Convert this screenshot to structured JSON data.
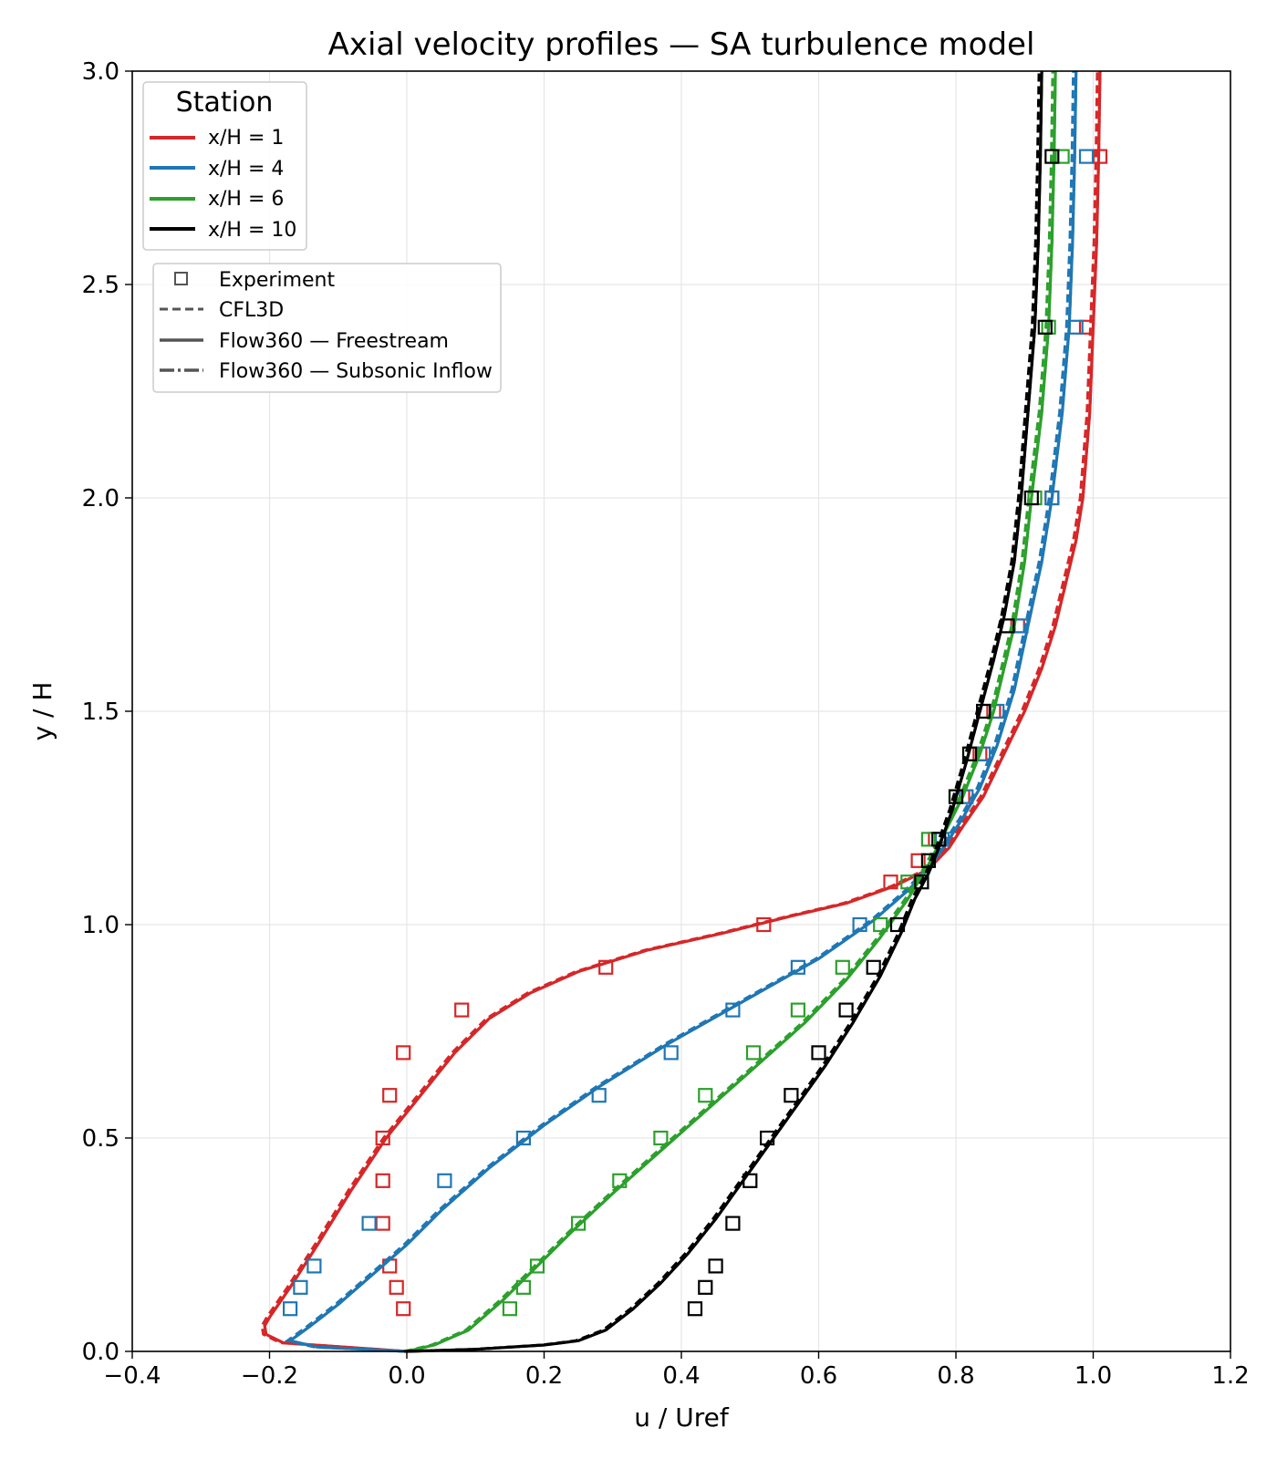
{
  "chart_data": {
    "type": "line",
    "title": "Axial velocity profiles — SA turbulence model",
    "xlabel": "u / Uref",
    "ylabel": "y / H",
    "xlim": [
      -0.4,
      1.2
    ],
    "ylim": [
      0.0,
      3.0
    ],
    "xticks": [
      -0.4,
      -0.2,
      0.0,
      0.2,
      0.4,
      0.6,
      0.8,
      1.0,
      1.2
    ],
    "xtick_labels": [
      "−0.4",
      "−0.2",
      "0.0",
      "0.2",
      "0.4",
      "0.6",
      "0.8",
      "1.0",
      "1.2"
    ],
    "yticks": [
      0.0,
      0.5,
      1.0,
      1.5,
      2.0,
      2.5,
      3.0
    ],
    "ytick_labels": [
      "0.0",
      "0.5",
      "1.0",
      "1.5",
      "2.0",
      "2.5",
      "3.0"
    ],
    "grid": true,
    "legend_station": {
      "title": "Station",
      "placement": "top-left",
      "entries": [
        "x/H = 1",
        "x/H = 4",
        "x/H = 6",
        "x/H = 10"
      ]
    },
    "legend_method": {
      "placement": "upper-left",
      "entries": [
        "Experiment",
        "CFL3D",
        "Flow360 — Freestream",
        "Flow360 — Subsonic Inflow"
      ]
    },
    "series": [
      {
        "name": "x/H = 1",
        "color": "#d62728",
        "profile": [
          [
            0.0,
            0.0
          ],
          [
            -0.18,
            0.02
          ],
          [
            -0.205,
            0.04
          ],
          [
            -0.207,
            0.06
          ],
          [
            -0.2,
            0.08
          ],
          [
            -0.17,
            0.15
          ],
          [
            -0.13,
            0.25
          ],
          [
            -0.08,
            0.38
          ],
          [
            -0.03,
            0.5
          ],
          [
            0.02,
            0.6
          ],
          [
            0.07,
            0.7
          ],
          [
            0.12,
            0.78
          ],
          [
            0.18,
            0.84
          ],
          [
            0.25,
            0.89
          ],
          [
            0.35,
            0.94
          ],
          [
            0.46,
            0.98
          ],
          [
            0.56,
            1.02
          ],
          [
            0.64,
            1.05
          ],
          [
            0.71,
            1.09
          ],
          [
            0.76,
            1.13
          ],
          [
            0.79,
            1.18
          ],
          [
            0.81,
            1.23
          ],
          [
            0.84,
            1.3
          ],
          [
            0.87,
            1.4
          ],
          [
            0.9,
            1.5
          ],
          [
            0.925,
            1.6
          ],
          [
            0.945,
            1.7
          ],
          [
            0.96,
            1.8
          ],
          [
            0.975,
            1.9
          ],
          [
            0.985,
            2.0
          ],
          [
            0.995,
            2.2
          ],
          [
            1.0,
            2.4
          ],
          [
            1.005,
            2.6
          ],
          [
            1.008,
            2.8
          ],
          [
            1.01,
            3.0
          ]
        ],
        "experiment": [
          [
            -0.005,
            0.1
          ],
          [
            -0.015,
            0.15
          ],
          [
            -0.025,
            0.2
          ],
          [
            -0.035,
            0.3
          ],
          [
            -0.035,
            0.4
          ],
          [
            -0.035,
            0.5
          ],
          [
            -0.025,
            0.6
          ],
          [
            -0.005,
            0.7
          ],
          [
            0.08,
            0.8
          ],
          [
            0.29,
            0.9
          ],
          [
            0.52,
            1.0
          ],
          [
            0.705,
            1.1
          ],
          [
            0.745,
            1.15
          ],
          [
            0.77,
            1.2
          ],
          [
            0.81,
            1.3
          ],
          [
            0.835,
            1.4
          ],
          [
            0.855,
            1.5
          ],
          [
            0.89,
            1.7
          ],
          [
            0.94,
            2.0
          ],
          [
            0.99,
            2.4
          ],
          [
            1.01,
            2.8
          ]
        ]
      },
      {
        "name": "x/H = 4",
        "color": "#1f77b4",
        "profile": [
          [
            0.0,
            0.0
          ],
          [
            -0.06,
            0.005
          ],
          [
            -0.13,
            0.01
          ],
          [
            -0.17,
            0.025
          ],
          [
            -0.14,
            0.06
          ],
          [
            -0.1,
            0.11
          ],
          [
            -0.05,
            0.18
          ],
          [
            0.0,
            0.25
          ],
          [
            0.05,
            0.33
          ],
          [
            0.12,
            0.43
          ],
          [
            0.2,
            0.53
          ],
          [
            0.28,
            0.62
          ],
          [
            0.38,
            0.72
          ],
          [
            0.49,
            0.82
          ],
          [
            0.6,
            0.92
          ],
          [
            0.68,
            1.01
          ],
          [
            0.73,
            1.08
          ],
          [
            0.76,
            1.13
          ],
          [
            0.79,
            1.2
          ],
          [
            0.81,
            1.25
          ],
          [
            0.835,
            1.32
          ],
          [
            0.86,
            1.42
          ],
          [
            0.885,
            1.55
          ],
          [
            0.905,
            1.7
          ],
          [
            0.925,
            1.85
          ],
          [
            0.94,
            2.0
          ],
          [
            0.955,
            2.2
          ],
          [
            0.965,
            2.4
          ],
          [
            0.97,
            2.6
          ],
          [
            0.973,
            2.8
          ],
          [
            0.975,
            3.0
          ]
        ],
        "experiment": [
          [
            -0.17,
            0.1
          ],
          [
            -0.155,
            0.15
          ],
          [
            -0.135,
            0.2
          ],
          [
            -0.055,
            0.3
          ],
          [
            0.055,
            0.4
          ],
          [
            0.17,
            0.5
          ],
          [
            0.28,
            0.6
          ],
          [
            0.385,
            0.7
          ],
          [
            0.475,
            0.8
          ],
          [
            0.57,
            0.9
          ],
          [
            0.66,
            1.0
          ],
          [
            0.78,
            1.2
          ],
          [
            0.815,
            1.3
          ],
          [
            0.84,
            1.4
          ],
          [
            0.86,
            1.5
          ],
          [
            0.895,
            1.7
          ],
          [
            0.94,
            2.0
          ],
          [
            0.975,
            2.4
          ],
          [
            0.99,
            2.8
          ]
        ]
      },
      {
        "name": "x/H = 6",
        "color": "#2ca02c",
        "profile": [
          [
            0.0,
            0.0
          ],
          [
            0.04,
            0.015
          ],
          [
            0.09,
            0.05
          ],
          [
            0.14,
            0.12
          ],
          [
            0.19,
            0.2
          ],
          [
            0.24,
            0.28
          ],
          [
            0.3,
            0.37
          ],
          [
            0.37,
            0.47
          ],
          [
            0.44,
            0.57
          ],
          [
            0.51,
            0.67
          ],
          [
            0.58,
            0.77
          ],
          [
            0.64,
            0.87
          ],
          [
            0.69,
            0.97
          ],
          [
            0.73,
            1.06
          ],
          [
            0.76,
            1.14
          ],
          [
            0.785,
            1.22
          ],
          [
            0.81,
            1.3
          ],
          [
            0.835,
            1.4
          ],
          [
            0.855,
            1.5
          ],
          [
            0.87,
            1.6
          ],
          [
            0.885,
            1.7
          ],
          [
            0.9,
            1.85
          ],
          [
            0.91,
            2.0
          ],
          [
            0.925,
            2.2
          ],
          [
            0.935,
            2.4
          ],
          [
            0.94,
            2.6
          ],
          [
            0.943,
            2.8
          ],
          [
            0.945,
            3.0
          ]
        ],
        "experiment": [
          [
            0.15,
            0.1
          ],
          [
            0.17,
            0.15
          ],
          [
            0.19,
            0.2
          ],
          [
            0.25,
            0.3
          ],
          [
            0.31,
            0.4
          ],
          [
            0.37,
            0.5
          ],
          [
            0.435,
            0.6
          ],
          [
            0.505,
            0.7
          ],
          [
            0.57,
            0.8
          ],
          [
            0.635,
            0.9
          ],
          [
            0.69,
            1.0
          ],
          [
            0.73,
            1.1
          ],
          [
            0.76,
            1.2
          ],
          [
            0.8,
            1.3
          ],
          [
            0.82,
            1.4
          ],
          [
            0.84,
            1.5
          ],
          [
            0.875,
            1.7
          ],
          [
            0.915,
            2.0
          ],
          [
            0.935,
            2.4
          ],
          [
            0.955,
            2.8
          ]
        ]
      },
      {
        "name": "x/H = 10",
        "color": "#000000",
        "profile": [
          [
            0.0,
            0.0
          ],
          [
            0.1,
            0.005
          ],
          [
            0.2,
            0.015
          ],
          [
            0.25,
            0.025
          ],
          [
            0.29,
            0.05
          ],
          [
            0.33,
            0.1
          ],
          [
            0.37,
            0.16
          ],
          [
            0.41,
            0.23
          ],
          [
            0.45,
            0.31
          ],
          [
            0.49,
            0.4
          ],
          [
            0.53,
            0.49
          ],
          [
            0.57,
            0.58
          ],
          [
            0.61,
            0.67
          ],
          [
            0.65,
            0.77
          ],
          [
            0.69,
            0.88
          ],
          [
            0.72,
            0.98
          ],
          [
            0.74,
            1.06
          ],
          [
            0.76,
            1.12
          ],
          [
            0.775,
            1.18
          ],
          [
            0.795,
            1.27
          ],
          [
            0.815,
            1.38
          ],
          [
            0.835,
            1.5
          ],
          [
            0.855,
            1.62
          ],
          [
            0.87,
            1.72
          ],
          [
            0.885,
            1.85
          ],
          [
            0.895,
            2.0
          ],
          [
            0.905,
            2.2
          ],
          [
            0.915,
            2.4
          ],
          [
            0.92,
            2.6
          ],
          [
            0.923,
            2.8
          ],
          [
            0.925,
            3.0
          ]
        ],
        "experiment": [
          [
            0.42,
            0.1
          ],
          [
            0.435,
            0.15
          ],
          [
            0.45,
            0.2
          ],
          [
            0.475,
            0.3
          ],
          [
            0.5,
            0.4
          ],
          [
            0.525,
            0.5
          ],
          [
            0.56,
            0.6
          ],
          [
            0.6,
            0.7
          ],
          [
            0.64,
            0.8
          ],
          [
            0.68,
            0.9
          ],
          [
            0.715,
            1.0
          ],
          [
            0.75,
            1.1
          ],
          [
            0.76,
            1.15
          ],
          [
            0.775,
            1.2
          ],
          [
            0.8,
            1.3
          ],
          [
            0.82,
            1.4
          ],
          [
            0.84,
            1.5
          ],
          [
            0.875,
            1.7
          ],
          [
            0.91,
            2.0
          ],
          [
            0.93,
            2.4
          ],
          [
            0.94,
            2.8
          ]
        ]
      }
    ]
  }
}
